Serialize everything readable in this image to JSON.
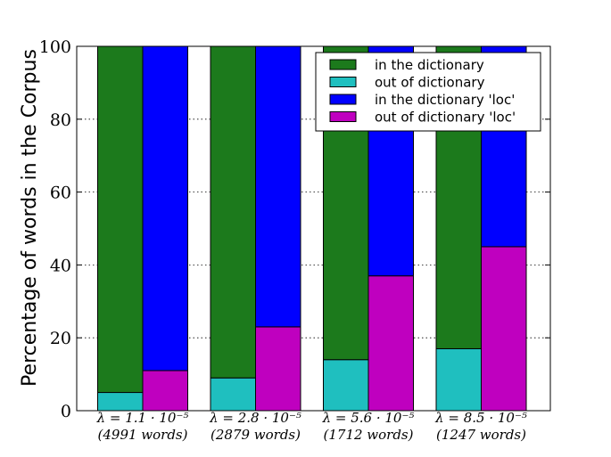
{
  "chart_data": {
    "type": "bar",
    "stacked": true,
    "grouped": true,
    "title": "",
    "xlabel": "",
    "ylabel": "Percentage of words in the Corpus",
    "ylim": [
      0,
      100
    ],
    "yticks": [
      0,
      20,
      40,
      60,
      80,
      100
    ],
    "grid": "y-dotted",
    "legend_position": "top-right",
    "categories": [
      {
        "line1": "λ = 1.1 · 10⁻⁵",
        "line2": "(4991 words)"
      },
      {
        "line1": "λ = 2.8 · 10⁻⁵",
        "line2": "(2879 words)"
      },
      {
        "line1": "λ = 5.6 · 10⁻⁵",
        "line2": "(1712 words)"
      },
      {
        "line1": "λ = 8.5 · 10⁻⁵",
        "line2": "(1247 words)"
      }
    ],
    "series": [
      {
        "name": "in the dictionary",
        "color": "#1c7a1c",
        "group": "plain",
        "stack_level": 1,
        "values": [
          95,
          91,
          86,
          83
        ]
      },
      {
        "name": "out of dictionary",
        "color": "#1fbfbf",
        "group": "plain",
        "stack_level": 0,
        "values": [
          5,
          9,
          14,
          17
        ]
      },
      {
        "name": "in the dictionary 'loc'",
        "color": "#0000ff",
        "group": "loc",
        "stack_level": 1,
        "values": [
          89,
          77,
          63,
          55
        ]
      },
      {
        "name": "out of dictionary 'loc'",
        "color": "#bf00bf",
        "group": "loc",
        "stack_level": 0,
        "values": [
          11,
          23,
          37,
          45
        ]
      }
    ]
  }
}
